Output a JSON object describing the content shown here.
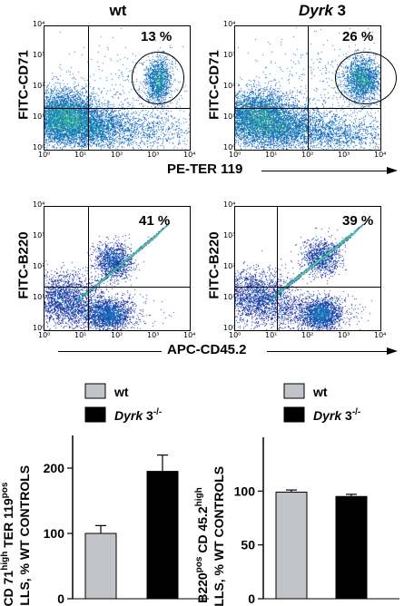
{
  "columns": {
    "left": "wt",
    "right_italic": "Dyrk",
    "right_rest": " 3"
  },
  "flow_rows": [
    {
      "x_label": "PE-TER 119",
      "y_label": "FITC-CD71",
      "panels": [
        {
          "percent": "13 %"
        },
        {
          "percent": "26 %"
        }
      ]
    },
    {
      "x_label": "APC-CD45.2",
      "y_label": "FITC-B220",
      "panels": [
        {
          "percent": "41 %"
        },
        {
          "percent": "39 %"
        }
      ]
    }
  ],
  "axis_ticks": {
    "x": [
      "10⁰",
      "10¹",
      "10²",
      "10³",
      "10⁴"
    ],
    "y": [
      "10⁰",
      "10¹",
      "10²",
      "10³",
      "10⁴"
    ]
  },
  "legend": {
    "wt": "wt",
    "ko_italic": "Dyrk",
    "ko_rest": " 3",
    "ko_sup": "-/-"
  },
  "chart_data": [
    {
      "type": "bar",
      "categories": [
        "wt",
        "Dyrk 3-/-"
      ],
      "values": [
        100,
        195
      ],
      "errors": [
        12,
        25
      ],
      "ylim": [
        0,
        250
      ],
      "yticks": [
        "0",
        "100",
        "200"
      ],
      "ytick_values": [
        0,
        100,
        200
      ],
      "ylabel_line1_parts": [
        "CD 71",
        "high",
        " TER 119",
        "pos"
      ],
      "ylabel_line2": "CELLS, % WT CONTROLS",
      "colors": [
        "#c0c4c8",
        "#000000"
      ]
    },
    {
      "type": "bar",
      "categories": [
        "wt",
        "Dyrk 3-/-"
      ],
      "values": [
        99,
        95
      ],
      "errors": [
        2,
        2
      ],
      "ylim": [
        0,
        150
      ],
      "yticks": [
        "0",
        "50",
        "100"
      ],
      "ytick_values": [
        0,
        50,
        100
      ],
      "ylabel_line1_parts": [
        "B220",
        "pos",
        " CD 45.2",
        "high"
      ],
      "ylabel_line2": "CELLS, % WT CONTROLS",
      "colors": [
        "#c0c4c8",
        "#000000"
      ]
    }
  ]
}
